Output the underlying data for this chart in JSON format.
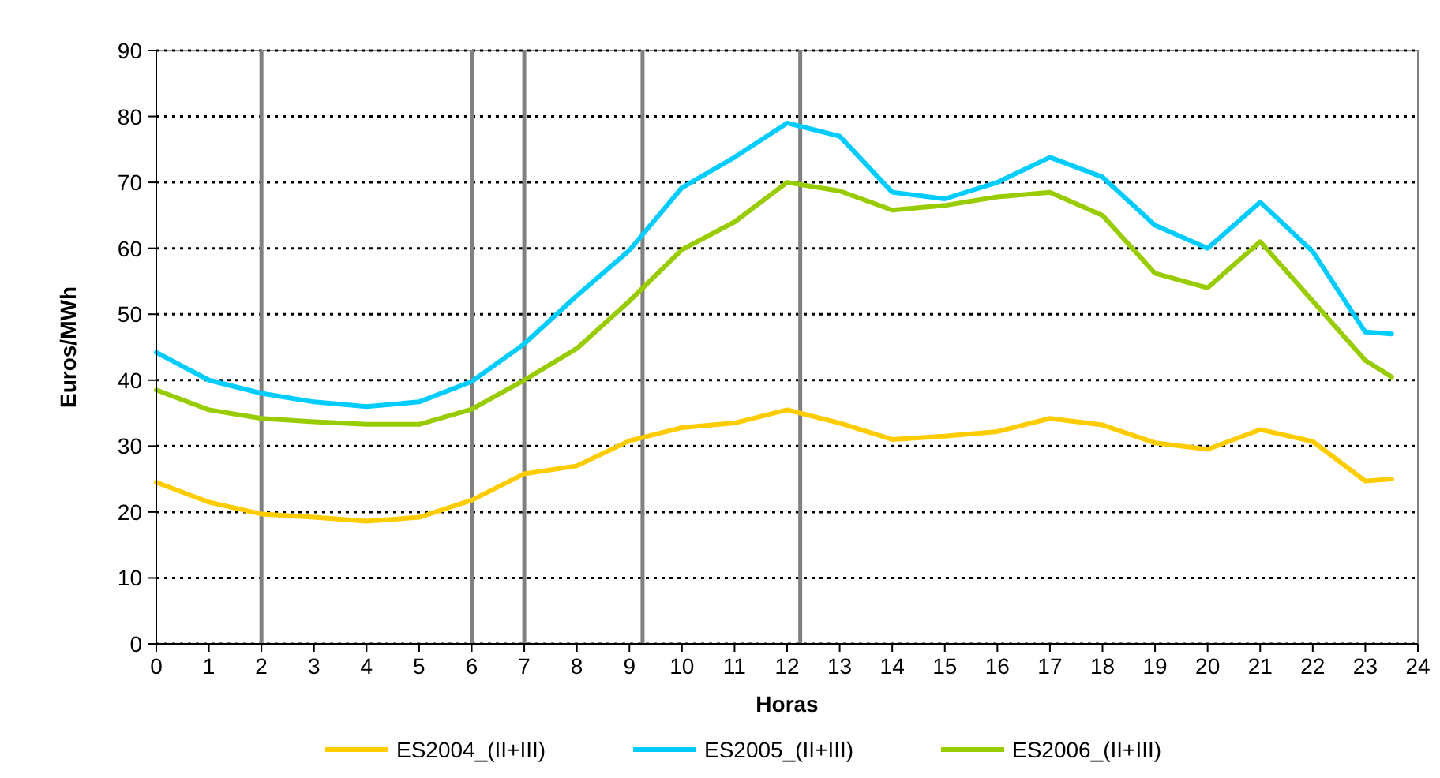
{
  "chart_data": {
    "type": "line",
    "xlabel": "Horas",
    "ylabel": "Euros/MWh",
    "x": [
      0,
      1,
      2,
      3,
      4,
      5,
      6,
      7,
      8,
      9,
      10,
      11,
      12,
      13,
      14,
      15,
      16,
      17,
      18,
      19,
      20,
      21,
      22,
      23,
      23.5
    ],
    "series": [
      {
        "name": "ES2004_(II+III)",
        "color": "#ffcc00",
        "values": [
          24.5,
          21.5,
          19.7,
          19.2,
          18.6,
          19.2,
          21.8,
          25.8,
          27,
          30.8,
          32.8,
          33.5,
          35.5,
          33.5,
          31,
          31.5,
          32.2,
          34.2,
          33.2,
          30.5,
          29.5,
          32.5,
          30.7,
          24.7,
          25
        ]
      },
      {
        "name": "ES2005_(II+III)",
        "color": "#00ccff",
        "values": [
          44.2,
          40,
          38,
          36.7,
          36,
          36.7,
          39.8,
          45.5,
          52.8,
          59.7,
          69.2,
          73.8,
          79,
          77,
          68.5,
          67.5,
          70,
          73.8,
          70.8,
          63.5,
          60,
          67,
          59.5,
          47.3,
          47
        ]
      },
      {
        "name": "ES2006_(II+III)",
        "color": "#99cc00",
        "values": [
          38.5,
          35.5,
          34.2,
          33.7,
          33.3,
          33.3,
          35.6,
          40,
          44.8,
          52,
          59.8,
          64,
          70,
          68.7,
          65.8,
          66.5,
          67.8,
          68.5,
          65,
          56.2,
          54,
          61,
          52,
          43,
          40.5
        ]
      }
    ],
    "xlim": [
      0,
      24
    ],
    "xticks": [
      0,
      1,
      2,
      3,
      4,
      5,
      6,
      7,
      8,
      9,
      10,
      11,
      12,
      13,
      14,
      15,
      16,
      17,
      18,
      19,
      20,
      21,
      22,
      23,
      24
    ],
    "ylim": [
      0,
      90
    ],
    "yticks": [
      0,
      10,
      20,
      30,
      40,
      50,
      60,
      70,
      80,
      90
    ],
    "ref_lines": [
      {
        "axis": "x",
        "value": 2,
        "color": "#808080"
      },
      {
        "axis": "x",
        "value": 6,
        "color": "#808080"
      },
      {
        "axis": "x",
        "value": 7,
        "color": "#808080"
      },
      {
        "axis": "x",
        "value": 9.25,
        "color": "#808080"
      },
      {
        "axis": "x",
        "value": 12.25,
        "color": "#808080"
      }
    ],
    "grid": "y",
    "legend": "bottom",
    "marker": "none",
    "line_style": "solid"
  }
}
